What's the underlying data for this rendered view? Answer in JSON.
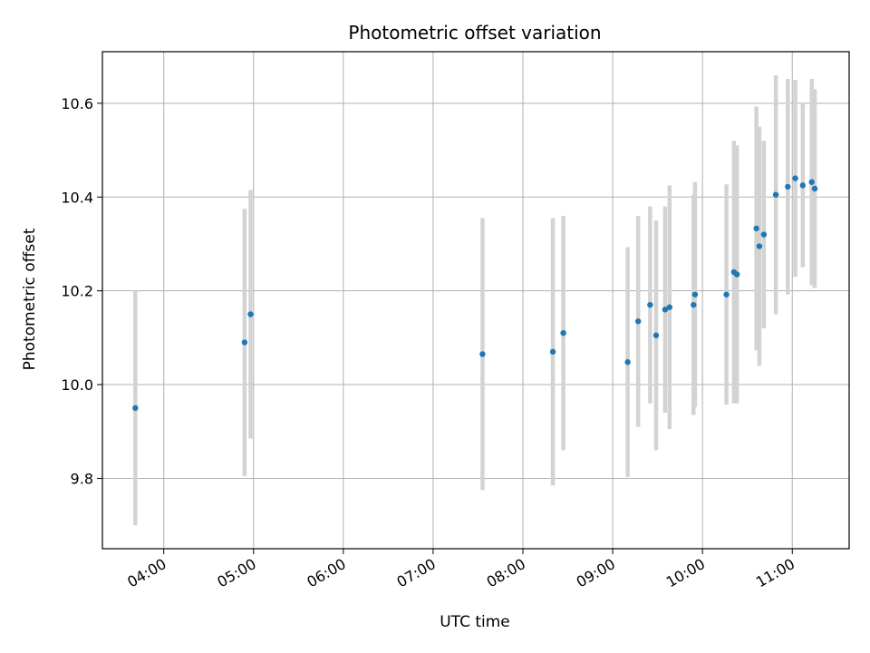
{
  "chart_data": {
    "type": "scatter",
    "title": "Photometric offset variation",
    "xlabel": "UTC time",
    "ylabel": "Photometric offset",
    "x_ticks": [
      "04:00",
      "05:00",
      "06:00",
      "07:00",
      "08:00",
      "09:00",
      "10:00",
      "11:00"
    ],
    "y_ticks": [
      "9.8",
      "10.0",
      "10.2",
      "10.4",
      "10.6"
    ],
    "xlim": [
      "03:19",
      "11:38"
    ],
    "ylim": [
      9.65,
      10.71
    ],
    "grid": true,
    "colors": {
      "point": "#1f77b4",
      "errorbar": "#d3d3d3",
      "grid": "#b0b0b0"
    },
    "points": [
      {
        "x": "03:41",
        "y": 9.95,
        "err": 0.25
      },
      {
        "x": "04:54",
        "y": 10.09,
        "err": 0.285
      },
      {
        "x": "04:58",
        "y": 10.15,
        "err": 0.265
      },
      {
        "x": "07:33",
        "y": 10.065,
        "err": 0.29
      },
      {
        "x": "08:20",
        "y": 10.07,
        "err": 0.285
      },
      {
        "x": "08:27",
        "y": 10.11,
        "err": 0.25
      },
      {
        "x": "09:10",
        "y": 10.048,
        "err": 0.245
      },
      {
        "x": "09:17",
        "y": 10.135,
        "err": 0.225
      },
      {
        "x": "09:25",
        "y": 10.17,
        "err": 0.21
      },
      {
        "x": "09:29",
        "y": 10.105,
        "err": 0.245
      },
      {
        "x": "09:35",
        "y": 10.16,
        "err": 0.22
      },
      {
        "x": "09:38",
        "y": 10.165,
        "err": 0.26
      },
      {
        "x": "09:54",
        "y": 10.17,
        "err": 0.235
      },
      {
        "x": "09:55",
        "y": 10.192,
        "err": 0.24
      },
      {
        "x": "10:16",
        "y": 10.192,
        "err": 0.235
      },
      {
        "x": "10:21",
        "y": 10.24,
        "err": 0.28
      },
      {
        "x": "10:23",
        "y": 10.235,
        "err": 0.275
      },
      {
        "x": "10:36",
        "y": 10.333,
        "err": 0.26
      },
      {
        "x": "10:38",
        "y": 10.295,
        "err": 0.255
      },
      {
        "x": "10:41",
        "y": 10.32,
        "err": 0.2
      },
      {
        "x": "10:49",
        "y": 10.405,
        "err": 0.255
      },
      {
        "x": "10:57",
        "y": 10.422,
        "err": 0.23
      },
      {
        "x": "11:02",
        "y": 10.44,
        "err": 0.21
      },
      {
        "x": "11:07",
        "y": 10.425,
        "err": 0.175
      },
      {
        "x": "11:13",
        "y": 10.432,
        "err": 0.22
      },
      {
        "x": "11:15",
        "y": 10.418,
        "err": 0.212
      }
    ]
  }
}
